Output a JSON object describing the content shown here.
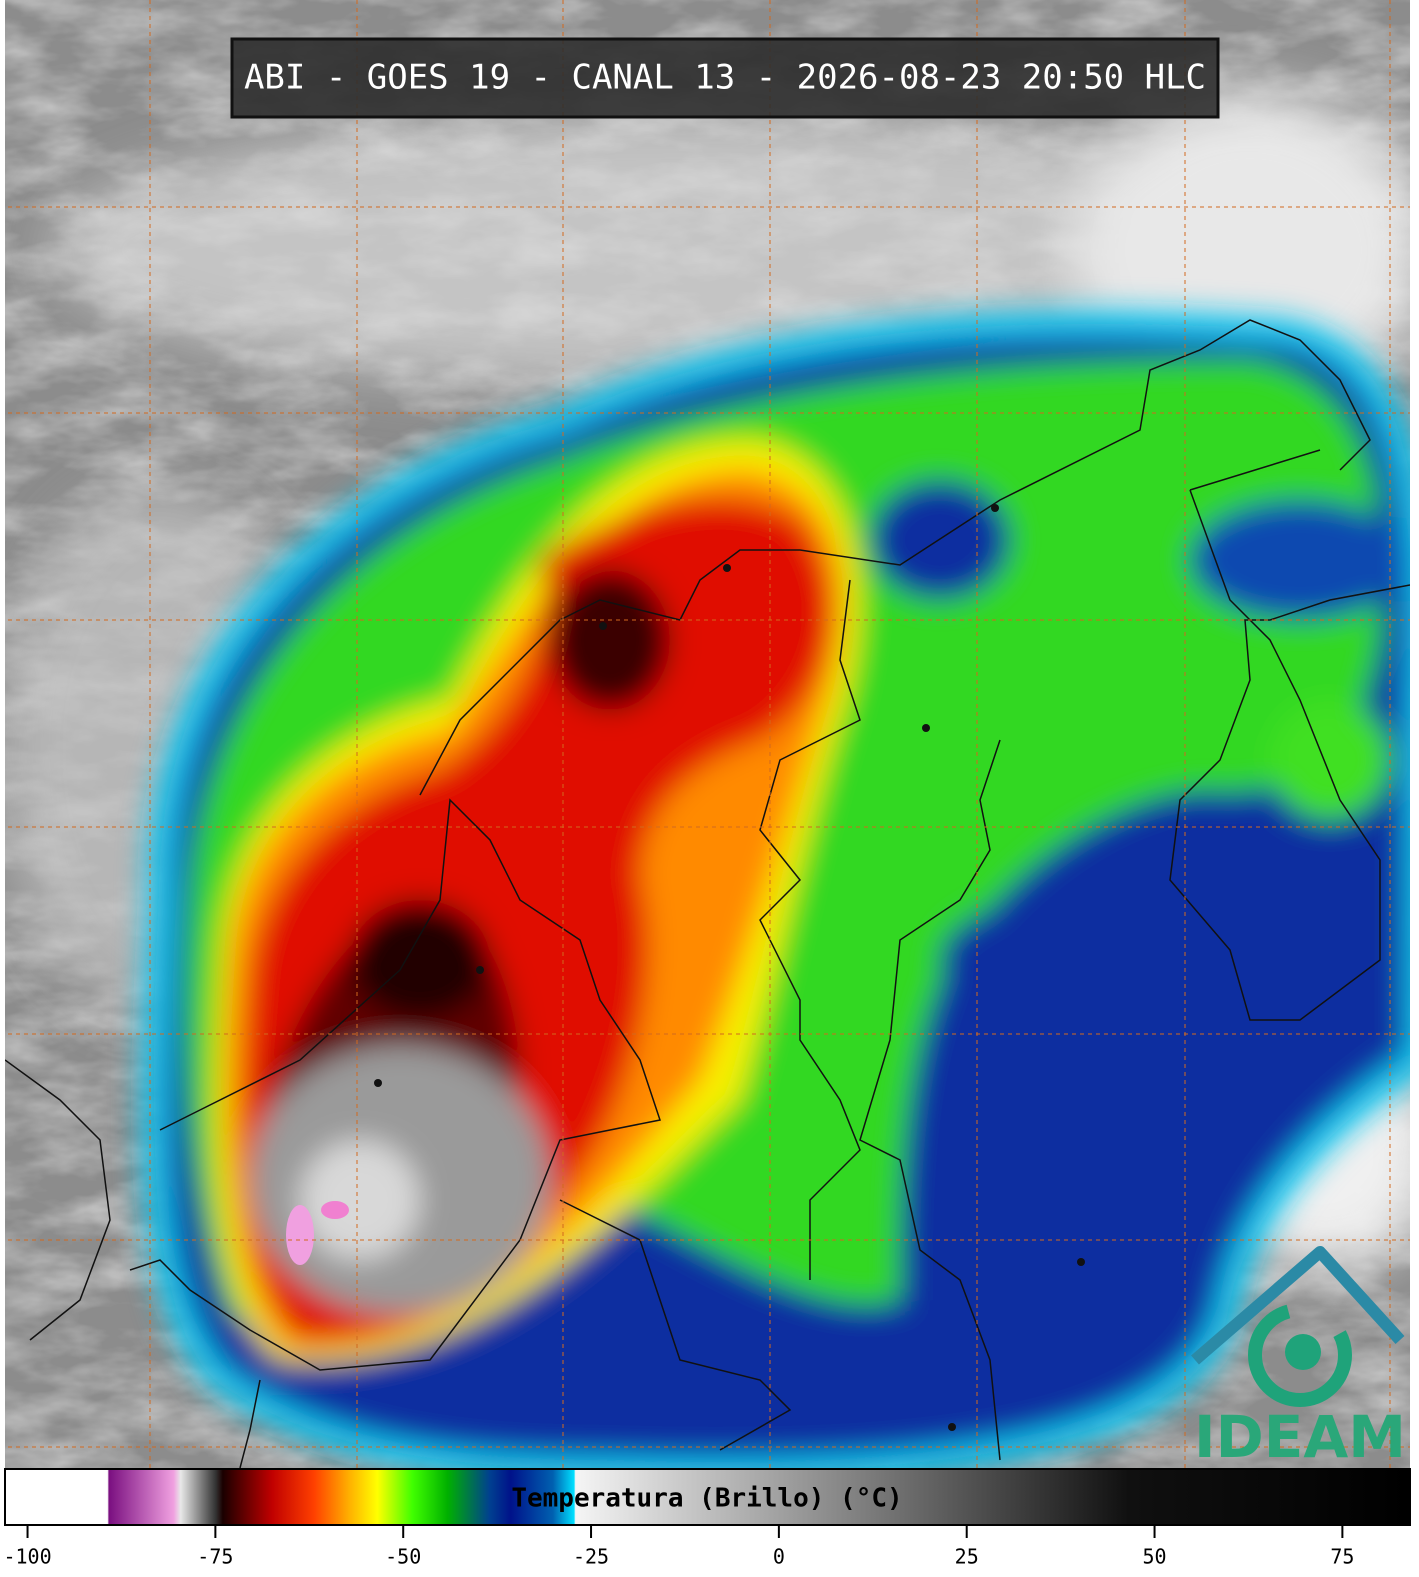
{
  "header": {
    "title": "ABI - GOES 19 - CANAL 13 - 2026-08-23 20:50 HLC"
  },
  "colorbar": {
    "label": "Temperatura (Brillo) (°C)",
    "lim": [
      -103,
      84
    ],
    "ticks": [
      -100,
      -75,
      -50,
      -25,
      0,
      25,
      50,
      75
    ]
  },
  "logo": {
    "text": "IDEAM"
  }
}
